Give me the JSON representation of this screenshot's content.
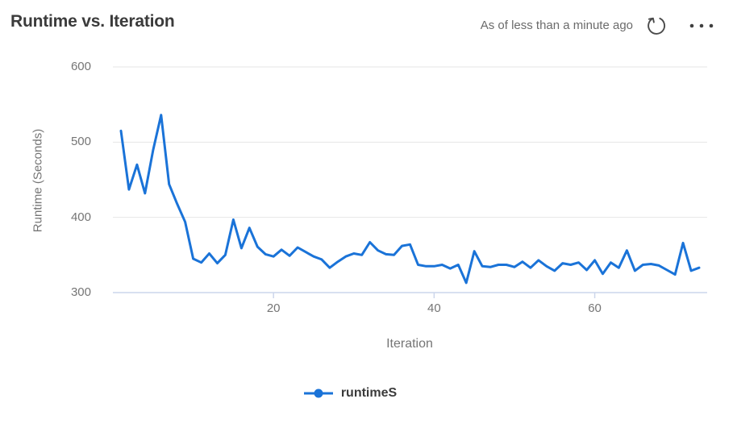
{
  "header": {
    "title": "Runtime vs. Iteration",
    "as_of": "As of less than a minute ago"
  },
  "colors": {
    "series_blue": "#1a73d8",
    "grid_line": "#e6e6e6",
    "axis_line": "#ccd6eb",
    "axis_text": "#757575",
    "title_text": "#3b3b3b",
    "icon_gray": "#4a4a4a"
  },
  "chart_data": {
    "type": "line",
    "title": "Runtime vs. Iteration",
    "xlabel": "Iteration",
    "ylabel": "Runtime (Seconds)",
    "xlim": [
      0,
      74
    ],
    "ylim": [
      300,
      600
    ],
    "x_ticks": [
      20,
      40,
      60
    ],
    "y_ticks": [
      300,
      400,
      500,
      600
    ],
    "grid": "horizontal-only",
    "legend_position": "bottom-center",
    "series": [
      {
        "name": "runtimeS",
        "color": "#1a73d8",
        "x": [
          1,
          2,
          3,
          4,
          5,
          6,
          7,
          8,
          9,
          10,
          11,
          12,
          13,
          14,
          15,
          16,
          17,
          18,
          19,
          20,
          21,
          22,
          23,
          24,
          25,
          26,
          27,
          28,
          29,
          30,
          31,
          32,
          33,
          34,
          35,
          36,
          37,
          38,
          39,
          40,
          41,
          42,
          43,
          44,
          45,
          46,
          47,
          48,
          49,
          50,
          51,
          52,
          53,
          54,
          55,
          56,
          57,
          58,
          59,
          60,
          61,
          62,
          63,
          64,
          65,
          66,
          67,
          68,
          69,
          70,
          71,
          72,
          73
        ],
        "values": [
          515,
          437,
          470,
          432,
          489,
          536,
          444,
          418,
          394,
          345,
          340,
          352,
          339,
          350,
          397,
          359,
          386,
          361,
          351,
          348,
          357,
          349,
          360,
          354,
          348,
          344,
          333,
          341,
          348,
          352,
          350,
          367,
          356,
          351,
          350,
          362,
          364,
          337,
          335,
          335,
          337,
          332,
          337,
          313,
          355,
          335,
          334,
          337,
          337,
          334,
          341,
          333,
          343,
          335,
          329,
          339,
          337,
          340,
          330,
          343,
          325,
          340,
          333,
          356,
          329,
          337,
          338,
          336,
          330,
          324,
          366,
          329,
          333
        ]
      }
    ]
  }
}
